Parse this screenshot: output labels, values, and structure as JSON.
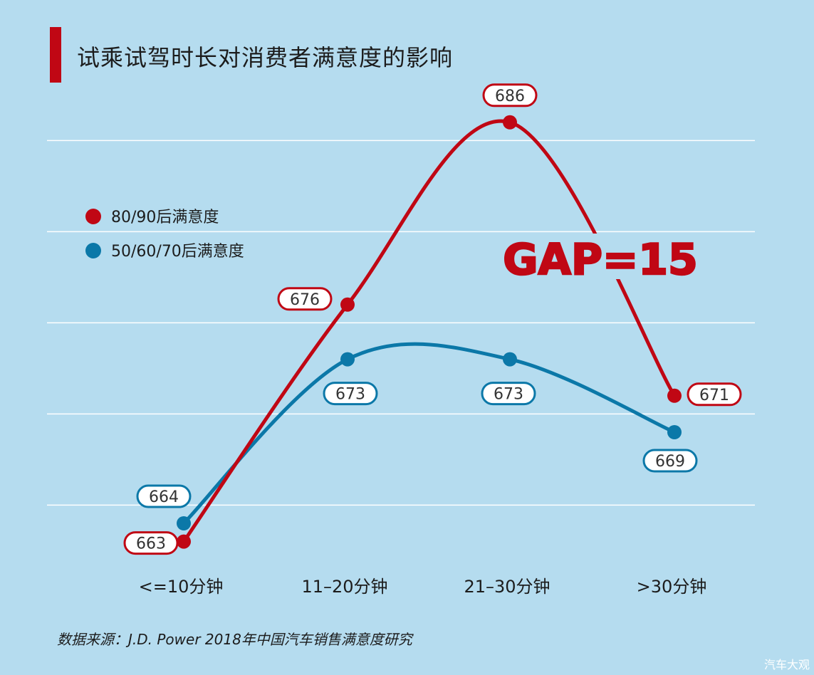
{
  "header": {
    "title": "试乘试驾时长对消费者满意度的影响"
  },
  "footer": {
    "source": "数据来源：J.D. Power 2018年中国汽车销售满意度研究",
    "watermark": "汽车大观"
  },
  "annotation": {
    "gap_text": "GAP=15"
  },
  "colors": {
    "background": "#b5dcef",
    "gridline": "#ffffff",
    "accent_red": "#c00714",
    "series_blue": "#0b78a8",
    "label_fill": "#ffffff",
    "text": "#1c1c1c"
  },
  "chart_data": {
    "type": "line",
    "title": "试乘试驾时长对消费者满意度的影响",
    "xlabel": "",
    "ylabel": "",
    "categories": [
      "<=10分钟",
      "11–20分钟",
      "21–30分钟",
      ">30分钟"
    ],
    "series": [
      {
        "name": "80/90后满意度",
        "values": [
          663,
          676,
          686,
          671
        ],
        "color": "#c00714"
      },
      {
        "name": "50/60/70后满意度",
        "values": [
          664,
          673,
          673,
          669
        ],
        "color": "#0b78a8"
      }
    ],
    "ylim": [
      660,
      690
    ],
    "grid": true,
    "legend_position": "left",
    "smooth": true
  }
}
